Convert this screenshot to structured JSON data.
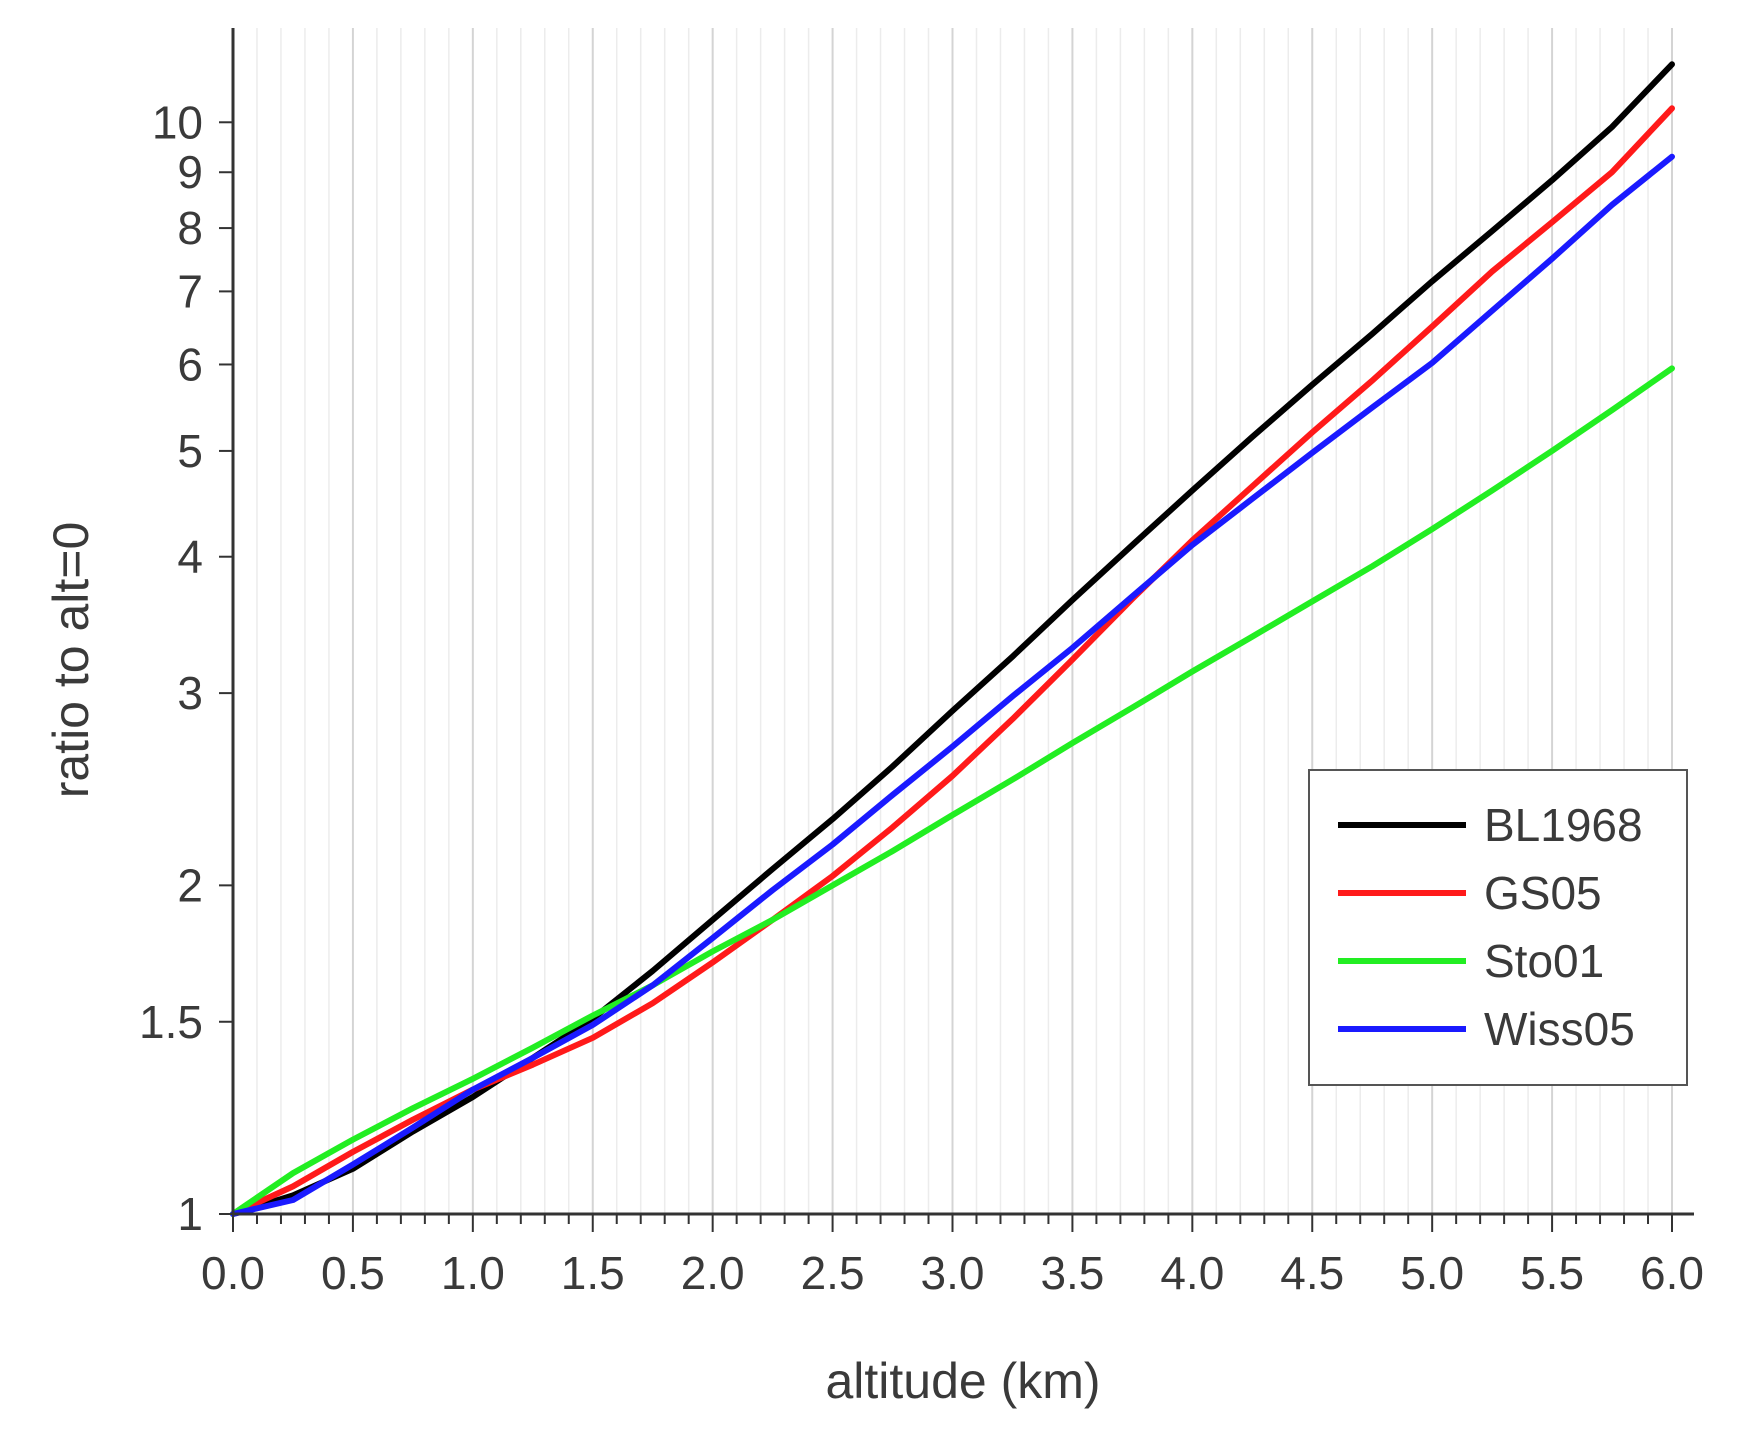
{
  "chart_data": {
    "type": "line",
    "xlabel": "altitude (km)",
    "ylabel": "ratio to alt=0",
    "xlim": [
      0.0,
      6.0
    ],
    "ylim": [
      1,
      12.2
    ],
    "yscale": "log",
    "grid": "vertical",
    "legend_position": "right",
    "x_ticks": [
      "0.0",
      "0.5",
      "1.0",
      "1.5",
      "2.0",
      "2.5",
      "3.0",
      "3.5",
      "4.0",
      "4.5",
      "5.0",
      "5.5",
      "6.0"
    ],
    "x_tick_values": [
      0,
      0.5,
      1,
      1.5,
      2,
      2.5,
      3,
      3.5,
      4,
      4.5,
      5,
      5.5,
      6
    ],
    "y_ticks": [
      "1",
      "1.5",
      "2",
      "3",
      "4",
      "5",
      "6",
      "7",
      "8",
      "9",
      "10"
    ],
    "y_tick_values": [
      1,
      1.5,
      2,
      3,
      4,
      5,
      6,
      7,
      8,
      9,
      10
    ],
    "x": [
      0.0,
      0.25,
      0.5,
      0.75,
      1.0,
      1.25,
      1.5,
      1.75,
      2.0,
      2.25,
      2.5,
      2.75,
      3.0,
      3.25,
      3.5,
      3.75,
      4.0,
      4.25,
      4.5,
      4.75,
      5.0,
      5.25,
      5.5,
      5.75,
      6.0
    ],
    "series": [
      {
        "name": "BL1968",
        "color": "#000000",
        "values": [
          1.0,
          1.04,
          1.1,
          1.19,
          1.28,
          1.39,
          1.51,
          1.67,
          1.86,
          2.07,
          2.3,
          2.57,
          2.89,
          3.24,
          3.65,
          4.1,
          4.6,
          5.15,
          5.75,
          6.4,
          7.15,
          7.95,
          8.85,
          9.9,
          11.3
        ]
      },
      {
        "name": "GS05",
        "color": "#ff1a1a",
        "values": [
          1.0,
          1.06,
          1.14,
          1.22,
          1.3,
          1.37,
          1.45,
          1.56,
          1.7,
          1.86,
          2.04,
          2.26,
          2.52,
          2.84,
          3.22,
          3.66,
          4.14,
          4.64,
          5.2,
          5.8,
          6.5,
          7.3,
          8.1,
          9.0,
          10.3
        ]
      },
      {
        "name": "Sto01",
        "color": "#22ee22",
        "values": [
          1.0,
          1.09,
          1.17,
          1.25,
          1.33,
          1.42,
          1.52,
          1.62,
          1.74,
          1.86,
          2.0,
          2.15,
          2.32,
          2.5,
          2.7,
          2.91,
          3.14,
          3.38,
          3.64,
          3.92,
          4.24,
          4.6,
          5.0,
          5.45,
          5.95
        ]
      },
      {
        "name": "Wiss05",
        "color": "#1a1aff",
        "values": [
          1.0,
          1.03,
          1.11,
          1.2,
          1.3,
          1.39,
          1.49,
          1.62,
          1.79,
          1.98,
          2.18,
          2.42,
          2.68,
          2.98,
          3.3,
          3.68,
          4.1,
          4.52,
          4.98,
          5.48,
          6.02,
          6.72,
          7.5,
          8.4,
          9.3
        ]
      }
    ]
  }
}
